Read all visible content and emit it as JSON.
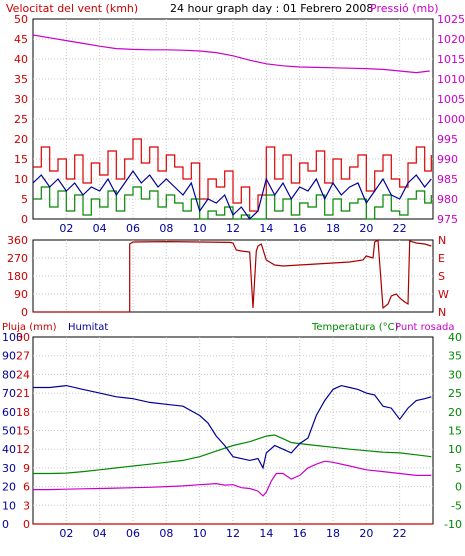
{
  "chart_data": [
    {
      "type": "line",
      "title": "24 hour graph day : 01 Febrero 2008",
      "left_axis_label": "Velocitat del vent (kmh)",
      "right_axis_label": "Pressió (mb)",
      "x_ticks": [
        "02",
        "04",
        "06",
        "08",
        "10",
        "12",
        "14",
        "16",
        "18",
        "20",
        "22"
      ],
      "x_range_hours": [
        0,
        24
      ],
      "left_ylim": [
        0,
        50
      ],
      "left_ticks": [
        "0",
        "5",
        "10",
        "15",
        "20",
        "25",
        "30",
        "35",
        "40",
        "45",
        "50"
      ],
      "right_ylim": [
        975,
        1025
      ],
      "right_ticks": [
        "975",
        "980",
        "985",
        "990",
        "995",
        "1000",
        "1005",
        "1010",
        "1015",
        "1020",
        "1025"
      ],
      "grid": true,
      "series": [
        {
          "name": "",
          "color": "#cc00cc",
          "axis": "right",
          "x": [
            0,
            1,
            2,
            3,
            4,
            5,
            6,
            7,
            8,
            9,
            10,
            11,
            12,
            13,
            14,
            15,
            16,
            17,
            18,
            19,
            20,
            21,
            22,
            23,
            23.8
          ],
          "y": [
            1021,
            1020.3,
            1019.6,
            1018.9,
            1018.2,
            1017.6,
            1017.4,
            1017.3,
            1017.3,
            1017.2,
            1017,
            1016.6,
            1015.8,
            1014.7,
            1013.8,
            1013.3,
            1013,
            1012.9,
            1012.8,
            1012.7,
            1012.6,
            1012.4,
            1012.0,
            1011.6,
            1012.0
          ]
        },
        {
          "name": "",
          "color": "#dd0000",
          "axis": "left",
          "style": "step",
          "x": [
            0,
            0.5,
            1,
            1.5,
            2,
            2.5,
            3,
            3.5,
            4,
            4.5,
            5,
            5.5,
            6,
            6.5,
            7,
            7.5,
            8,
            8.5,
            9,
            9.5,
            10,
            10.5,
            11,
            11.5,
            12,
            12.5,
            13,
            13.5,
            14,
            14.5,
            15,
            15.5,
            16,
            16.5,
            17,
            17.5,
            18,
            18.5,
            19,
            19.5,
            20,
            20.5,
            21,
            21.5,
            22,
            22.5,
            23,
            23.5,
            23.9
          ],
          "y": [
            13,
            18,
            12,
            15,
            10,
            16,
            9,
            14,
            11,
            17,
            10,
            15,
            20,
            14,
            18,
            12,
            16,
            13,
            10,
            14,
            5,
            10,
            8,
            12,
            4,
            8,
            2,
            6,
            18,
            10,
            16,
            9,
            14,
            12,
            17,
            9,
            15,
            10,
            13,
            16,
            7,
            12,
            16,
            10,
            8,
            14,
            18,
            12,
            16
          ]
        },
        {
          "name": "",
          "color": "#000099",
          "axis": "left",
          "x": [
            0,
            0.5,
            1,
            1.5,
            2,
            2.5,
            3,
            3.5,
            4,
            4.5,
            5,
            5.5,
            6,
            6.5,
            7,
            7.5,
            8,
            8.5,
            9,
            9.5,
            10,
            10.5,
            11,
            11.5,
            12,
            12.5,
            13,
            13.5,
            14,
            14.5,
            15,
            15.5,
            16,
            16.5,
            17,
            17.5,
            18,
            18.5,
            19,
            19.5,
            20,
            20.5,
            21,
            21.5,
            22,
            22.5,
            23,
            23.5,
            23.9
          ],
          "y": [
            9,
            11,
            8,
            10,
            7,
            9,
            6,
            8,
            7,
            10,
            6,
            9,
            12,
            9,
            11,
            8,
            10,
            8,
            6,
            9,
            2,
            5,
            4,
            6,
            1,
            3,
            0,
            2,
            10,
            6,
            9,
            5,
            8,
            7,
            10,
            5,
            9,
            6,
            8,
            9,
            4,
            7,
            10,
            6,
            5,
            9,
            11,
            8,
            10
          ]
        },
        {
          "name": "",
          "color": "#008800",
          "axis": "left",
          "style": "step",
          "x": [
            0,
            0.5,
            1,
            1.5,
            2,
            2.5,
            3,
            3.5,
            4,
            4.5,
            5,
            5.5,
            6,
            6.5,
            7,
            7.5,
            8,
            8.5,
            9,
            9.5,
            10,
            10.5,
            11,
            11.5,
            12,
            12.5,
            13,
            13.5,
            14,
            14.5,
            15,
            15.5,
            16,
            16.5,
            17,
            17.5,
            18,
            18.5,
            19,
            19.5,
            20,
            20.5,
            21,
            21.5,
            22,
            22.5,
            23,
            23.5,
            23.9
          ],
          "y": [
            5,
            8,
            3,
            7,
            2,
            6,
            1,
            5,
            3,
            7,
            2,
            6,
            8,
            5,
            7,
            3,
            6,
            4,
            2,
            5,
            0,
            2,
            1,
            3,
            0,
            1,
            0,
            0,
            6,
            2,
            5,
            1,
            4,
            3,
            6,
            1,
            5,
            2,
            4,
            5,
            0,
            3,
            6,
            2,
            1,
            5,
            7,
            4,
            6
          ]
        }
      ]
    },
    {
      "type": "line",
      "ylim": [
        0,
        360
      ],
      "left_ticks": [
        "0",
        "90",
        "180",
        "270",
        "360"
      ],
      "right_ticks": [
        "N",
        "W",
        "S",
        "E",
        "N"
      ],
      "grid": true,
      "series": [
        {
          "name": "",
          "color": "#aa0000",
          "axis": "left",
          "x": [
            0,
            5.8,
            5.8,
            6,
            8,
            10,
            11.8,
            12,
            12.2,
            12.5,
            13.0,
            13.2,
            13.4,
            13.5,
            13.7,
            14,
            14.5,
            15,
            16,
            17,
            18,
            19,
            19.8,
            20,
            20.4,
            20.5,
            20.7,
            21,
            21.3,
            21.5,
            21.8,
            22,
            22.3,
            22.5,
            22.6,
            23,
            23.5,
            23.9
          ],
          "y": [
            0,
            0,
            340,
            350,
            352,
            350,
            348,
            345,
            310,
            305,
            300,
            20,
            305,
            330,
            340,
            260,
            235,
            230,
            235,
            240,
            245,
            250,
            260,
            280,
            270,
            350,
            360,
            20,
            40,
            80,
            90,
            70,
            50,
            40,
            355,
            345,
            340,
            330
          ]
        }
      ]
    },
    {
      "type": "line",
      "legend": [
        "Pluja (mm)",
        "Humitat",
        "Temperatura (°C)",
        "Punt rosada"
      ],
      "axis_pluja_ticks": [
        "0",
        "3",
        "6",
        "9",
        "12",
        "15",
        "18",
        "21",
        "24",
        "27",
        "30"
      ],
      "axis_humitat_ticks": [
        "0",
        "10",
        "20",
        "30",
        "40",
        "50",
        "60",
        "70",
        "80",
        "90",
        "100"
      ],
      "axis_temp_ticks": [
        "-10",
        "-5",
        "0",
        "5",
        "10",
        "15",
        "20",
        "25",
        "30",
        "35",
        "40"
      ],
      "humitat_ylim": [
        0,
        100
      ],
      "temp_ylim": [
        -10,
        40
      ],
      "grid": true,
      "series": [
        {
          "name": "Pluja (mm)",
          "color": "#cc0000",
          "axis": "humitat",
          "x": [
            0,
            24
          ],
          "y": [
            0,
            0
          ]
        },
        {
          "name": "Humitat",
          "color": "#000099",
          "axis": "humitat",
          "x": [
            0,
            1,
            2,
            3,
            4,
            5,
            6,
            7,
            8,
            9,
            10,
            10.5,
            11,
            11.5,
            12,
            12.5,
            13,
            13.5,
            13.8,
            14,
            14.5,
            15,
            15.5,
            16,
            16.5,
            17,
            17.5,
            18,
            18.5,
            19,
            19.5,
            20,
            20.5,
            21,
            21.5,
            22,
            22.5,
            23,
            23.5,
            23.9
          ],
          "y": [
            73,
            73,
            74,
            72,
            70,
            68,
            67,
            65,
            64,
            63,
            58,
            54,
            47,
            42,
            36,
            35,
            34,
            35,
            30,
            38,
            42,
            40,
            38,
            43,
            46,
            58,
            66,
            72,
            74,
            73,
            72,
            70,
            69,
            63,
            62,
            56,
            62,
            66,
            67,
            68
          ]
        },
        {
          "name": "Temperatura (°C)",
          "color": "#008800",
          "axis": "temp",
          "x": [
            0,
            1,
            2,
            3,
            4,
            5,
            6,
            7,
            8,
            9,
            10,
            11,
            12,
            13,
            14,
            14.5,
            15,
            15.5,
            16,
            17,
            18,
            19,
            20,
            21,
            22,
            23,
            23.9
          ],
          "y": [
            3.5,
            3.5,
            3.6,
            4,
            4.5,
            5,
            5.5,
            6,
            6.5,
            7,
            8,
            9.5,
            11,
            12,
            13.5,
            13.8,
            12.8,
            11.8,
            11.5,
            11,
            10.5,
            10,
            9.6,
            9.2,
            9,
            8.5,
            8.0
          ]
        },
        {
          "name": "Punt rosada",
          "color": "#cc00cc",
          "axis": "temp",
          "x": [
            0,
            1,
            2,
            3,
            4,
            5,
            6,
            7,
            8,
            9,
            10,
            11,
            11.5,
            12,
            12.5,
            13,
            13.5,
            13.8,
            14,
            14.3,
            14.6,
            15,
            15.5,
            16,
            16.5,
            17,
            17.5,
            18,
            19,
            20,
            21,
            22,
            23,
            23.9
          ],
          "y": [
            -0.8,
            -0.8,
            -0.7,
            -0.6,
            -0.5,
            -0.4,
            -0.3,
            -0.2,
            0,
            0.2,
            0.5,
            0.8,
            0.4,
            0.5,
            -0.3,
            -0.5,
            -1.2,
            -2.5,
            -1.5,
            1.5,
            3.5,
            3.5,
            2,
            3,
            5,
            6,
            6.8,
            6.5,
            5.5,
            4.5,
            4,
            3.5,
            3,
            3
          ]
        }
      ]
    }
  ]
}
